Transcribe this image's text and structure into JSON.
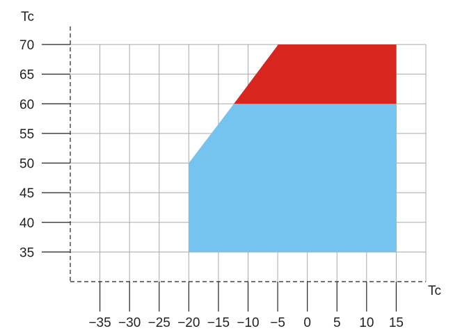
{
  "chart_data": {
    "type": "area",
    "xlabel": "Tc",
    "ylabel": "Tc",
    "xlim": [
      -40,
      20
    ],
    "ylim": [
      30,
      70
    ],
    "x_ticks": [
      -35,
      -30,
      -25,
      -20,
      -15,
      -10,
      -5,
      0,
      5,
      10,
      15
    ],
    "y_ticks": [
      35,
      40,
      45,
      50,
      55,
      60,
      65,
      70
    ],
    "x_tick_labels": [
      "−35",
      "−30",
      "−25",
      "−20",
      "−15",
      "−10",
      "−5",
      "0",
      "5",
      "10",
      "15"
    ],
    "y_tick_labels": [
      "35",
      "40",
      "45",
      "50",
      "55",
      "60",
      "65",
      "70"
    ],
    "grid": true,
    "series": [
      {
        "color": "#74c4ef",
        "polygon": [
          [
            -20,
            35
          ],
          [
            15,
            35
          ],
          [
            15,
            60
          ],
          [
            -12.4,
            60
          ],
          [
            -20,
            50
          ]
        ]
      },
      {
        "color": "#d8261f",
        "polygon": [
          [
            -12.4,
            60
          ],
          [
            15,
            60
          ],
          [
            15,
            70
          ],
          [
            -4.9,
            70
          ]
        ]
      }
    ]
  }
}
